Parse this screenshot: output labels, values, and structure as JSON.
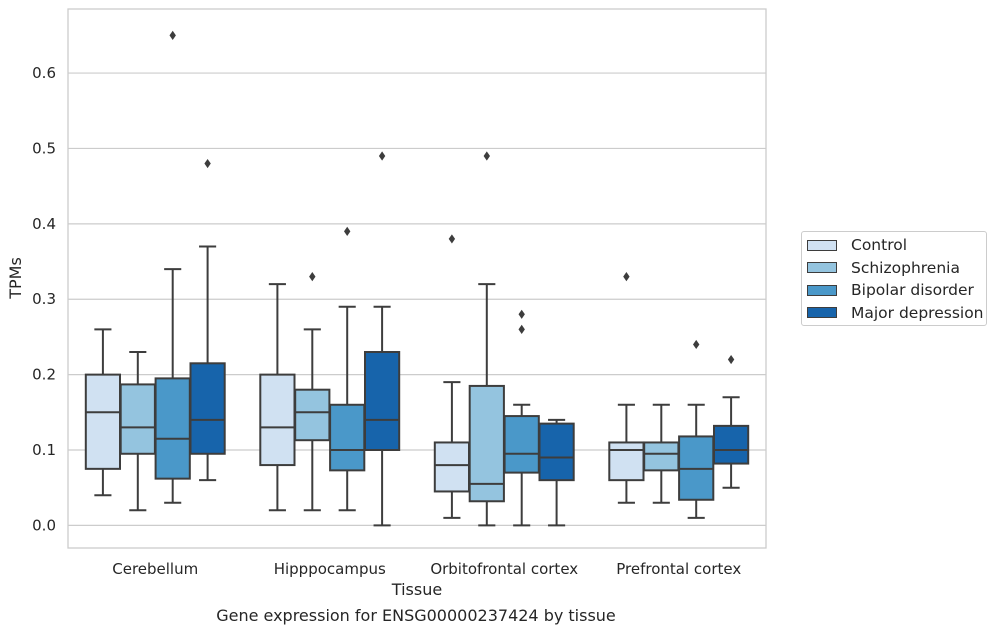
{
  "chart_data": {
    "type": "box",
    "xlabel": "Tissue",
    "ylabel": "TPMs",
    "ylim": [
      -0.03,
      0.685
    ],
    "yticks": [
      0.0,
      0.1,
      0.2,
      0.3,
      0.4,
      0.5,
      0.6
    ],
    "ytick_labels": [
      "0.0",
      "0.1",
      "0.2",
      "0.3",
      "0.4",
      "0.5",
      "0.6"
    ],
    "grid": "horizontal",
    "legend_position": "right",
    "categories": [
      "Cerebellum",
      "Hipppocampus",
      "Orbitofrontal cortex",
      "Prefrontal cortex"
    ],
    "series": [
      {
        "name": "Control",
        "color": "#d0e1f2",
        "boxes": [
          {
            "whislo": 0.04,
            "q1": 0.075,
            "med": 0.15,
            "q3": 0.2,
            "whishi": 0.26,
            "fliers": []
          },
          {
            "whislo": 0.02,
            "q1": 0.08,
            "med": 0.13,
            "q3": 0.2,
            "whishi": 0.32,
            "fliers": []
          },
          {
            "whislo": 0.01,
            "q1": 0.045,
            "med": 0.08,
            "q3": 0.11,
            "whishi": 0.19,
            "fliers": [
              0.38
            ]
          },
          {
            "whislo": 0.03,
            "q1": 0.06,
            "med": 0.1,
            "q3": 0.11,
            "whishi": 0.16,
            "fliers": [
              0.33
            ]
          }
        ]
      },
      {
        "name": "Schizophrenia",
        "color": "#94c4df",
        "boxes": [
          {
            "whislo": 0.02,
            "q1": 0.095,
            "med": 0.13,
            "q3": 0.187,
            "whishi": 0.23,
            "fliers": []
          },
          {
            "whislo": 0.02,
            "q1": 0.113,
            "med": 0.15,
            "q3": 0.18,
            "whishi": 0.26,
            "fliers": [
              0.33
            ]
          },
          {
            "whislo": 0.0,
            "q1": 0.032,
            "med": 0.055,
            "q3": 0.185,
            "whishi": 0.32,
            "fliers": [
              0.49
            ]
          },
          {
            "whislo": 0.03,
            "q1": 0.073,
            "med": 0.095,
            "q3": 0.11,
            "whishi": 0.16,
            "fliers": []
          }
        ]
      },
      {
        "name": "Bipolar disorder",
        "color": "#4a98c9",
        "boxes": [
          {
            "whislo": 0.03,
            "q1": 0.062,
            "med": 0.115,
            "q3": 0.195,
            "whishi": 0.34,
            "fliers": [
              0.65
            ]
          },
          {
            "whislo": 0.02,
            "q1": 0.073,
            "med": 0.1,
            "q3": 0.16,
            "whishi": 0.29,
            "fliers": [
              0.39
            ]
          },
          {
            "whislo": 0.0,
            "q1": 0.07,
            "med": 0.095,
            "q3": 0.145,
            "whishi": 0.16,
            "fliers": [
              0.26,
              0.28
            ]
          },
          {
            "whislo": 0.01,
            "q1": 0.034,
            "med": 0.075,
            "q3": 0.118,
            "whishi": 0.16,
            "fliers": [
              0.24
            ]
          }
        ]
      },
      {
        "name": "Major depression",
        "color": "#1764ab",
        "boxes": [
          {
            "whislo": 0.06,
            "q1": 0.095,
            "med": 0.14,
            "q3": 0.215,
            "whishi": 0.37,
            "fliers": [
              0.48
            ]
          },
          {
            "whislo": 0.0,
            "q1": 0.1,
            "med": 0.14,
            "q3": 0.23,
            "whishi": 0.29,
            "fliers": [
              0.49
            ]
          },
          {
            "whislo": 0.0,
            "q1": 0.06,
            "med": 0.09,
            "q3": 0.135,
            "whishi": 0.14,
            "fliers": []
          },
          {
            "whislo": 0.05,
            "q1": 0.082,
            "med": 0.1,
            "q3": 0.132,
            "whishi": 0.17,
            "fliers": [
              0.22
            ]
          }
        ]
      }
    ],
    "caption": "Gene expression for ENSG00000237424 by tissue"
  }
}
